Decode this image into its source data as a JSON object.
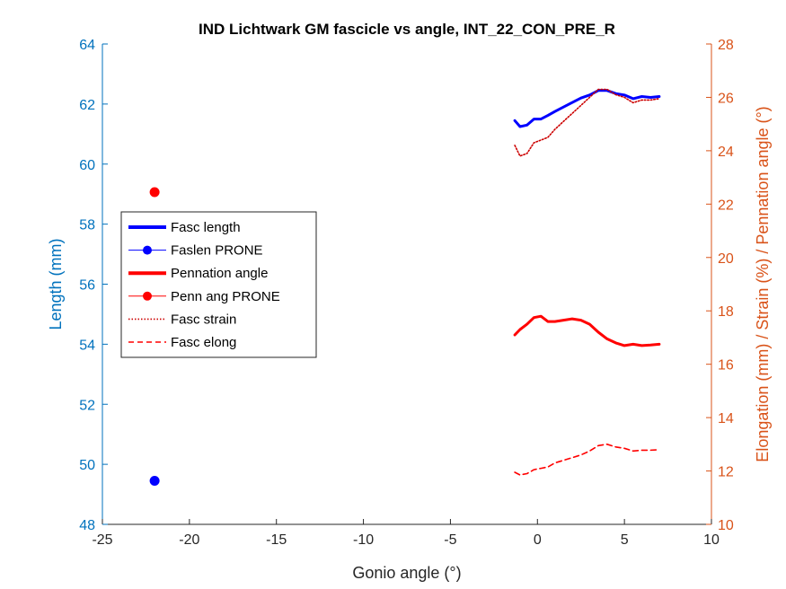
{
  "chart_data": {
    "type": "line",
    "title": "IND Lichtwark GM fascicle vs angle, INT_22_CON_PRE_R",
    "xlabel": "Gonio angle (°)",
    "ylabel_left": "Length (mm)",
    "ylabel_right": "Elongation (mm) / Strain (%) / Pennation angle (°)",
    "xlim": [
      -25,
      10
    ],
    "ylim_left": [
      48,
      64
    ],
    "ylim_right": [
      10,
      28
    ],
    "xticks": [
      "-25",
      "-20",
      "-15",
      "-10",
      "-5",
      "0",
      "5",
      "10"
    ],
    "yticks_left": [
      "48",
      "50",
      "52",
      "54",
      "56",
      "58",
      "60",
      "62",
      "64"
    ],
    "yticks_right": [
      "10",
      "12",
      "14",
      "16",
      "18",
      "20",
      "22",
      "24",
      "26",
      "28"
    ],
    "colors": {
      "left_axis": "#0072BD",
      "right_axis": "#D95319",
      "blue": "#0000FF",
      "red": "#FF0000"
    },
    "legend_position": "west",
    "series": [
      {
        "name": "Fasc length",
        "axis": "left",
        "style": "solid-thick",
        "color": "#0000FF",
        "x": [
          -1.3,
          -1.0,
          -0.6,
          -0.2,
          0.2,
          0.6,
          1.0,
          1.5,
          2.0,
          2.5,
          3.0,
          3.5,
          4.0,
          4.5,
          5.0,
          5.5,
          6.0,
          6.5,
          7.0
        ],
        "y": [
          61.45,
          61.25,
          61.3,
          61.5,
          61.5,
          61.62,
          61.75,
          61.9,
          62.05,
          62.2,
          62.3,
          62.45,
          62.45,
          62.35,
          62.3,
          62.18,
          62.25,
          62.22,
          62.25
        ]
      },
      {
        "name": "Faslen PRONE",
        "axis": "left",
        "style": "marker",
        "color": "#0000FF",
        "x": [
          -22
        ],
        "y": [
          49.45
        ]
      },
      {
        "name": "Pennation angle",
        "axis": "right",
        "style": "solid-thick",
        "color": "#FF0000",
        "x": [
          -1.3,
          -1.0,
          -0.6,
          -0.2,
          0.2,
          0.6,
          1.0,
          1.5,
          2.0,
          2.5,
          3.0,
          3.5,
          4.0,
          4.5,
          5.0,
          5.5,
          6.0,
          6.5,
          7.0
        ],
        "y": [
          17.1,
          17.3,
          17.5,
          17.75,
          17.8,
          17.6,
          17.6,
          17.65,
          17.7,
          17.65,
          17.5,
          17.2,
          16.95,
          16.8,
          16.7,
          16.75,
          16.7,
          16.72,
          16.75
        ]
      },
      {
        "name": "Penn ang PRONE",
        "axis": "right",
        "style": "marker",
        "color": "#FF0000",
        "x": [
          -22
        ],
        "y": [
          22.45
        ]
      },
      {
        "name": "Fasc strain",
        "axis": "right",
        "style": "dotted",
        "color": "#CC0000",
        "x": [
          -1.3,
          -1.0,
          -0.6,
          -0.2,
          0.2,
          0.6,
          1.0,
          1.5,
          2.0,
          2.5,
          3.0,
          3.5,
          4.0,
          4.5,
          5.0,
          5.5,
          6.0,
          6.5,
          7.0
        ],
        "y": [
          24.2,
          23.8,
          23.9,
          24.3,
          24.4,
          24.5,
          24.8,
          25.1,
          25.4,
          25.7,
          26.0,
          26.3,
          26.3,
          26.1,
          26.0,
          25.8,
          25.9,
          25.9,
          25.95
        ]
      },
      {
        "name": "Fasc elong",
        "axis": "right",
        "style": "dashed",
        "color": "#FF0000",
        "x": [
          -1.3,
          -1.0,
          -0.6,
          -0.2,
          0.2,
          0.6,
          1.0,
          1.5,
          2.0,
          2.5,
          3.0,
          3.5,
          4.0,
          4.5,
          5.0,
          5.5,
          6.0,
          6.5,
          7.0
        ],
        "y": [
          11.95,
          11.85,
          11.9,
          12.05,
          12.1,
          12.15,
          12.3,
          12.4,
          12.5,
          12.6,
          12.75,
          12.95,
          13.0,
          12.9,
          12.85,
          12.75,
          12.78,
          12.78,
          12.8
        ]
      }
    ]
  }
}
